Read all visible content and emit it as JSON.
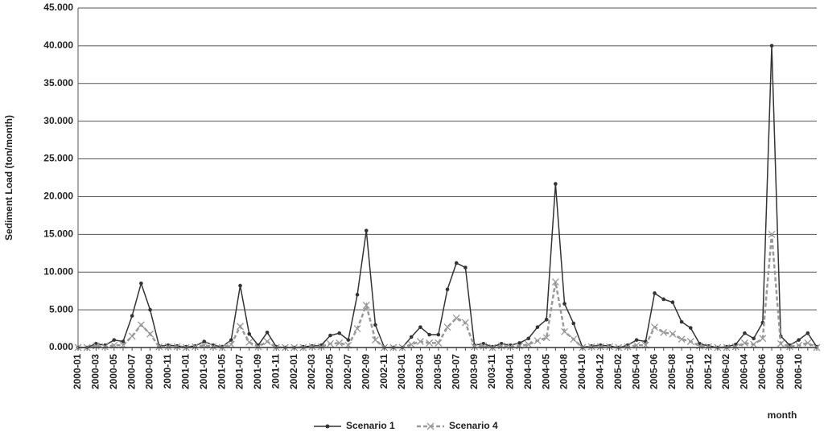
{
  "chart_data": {
    "type": "line",
    "y_label": "Sediment Load (ton/month)",
    "x_label": "month",
    "categories": [
      "2000-01",
      null,
      "2000-03",
      null,
      "2000-05",
      null,
      "2000-07",
      null,
      "2000-09",
      null,
      "2000-11",
      null,
      "2001-01",
      null,
      "2001-03",
      null,
      "2001-05",
      null,
      "2001-07",
      null,
      "2001-09",
      null,
      "2001-11",
      null,
      "2002-01",
      null,
      "2002-03",
      null,
      "2002-05",
      null,
      "2002-07",
      null,
      "2002-09",
      null,
      "2002-11",
      null,
      "2003-01",
      null,
      "2003-03",
      null,
      "2003-05",
      null,
      "2003-07",
      null,
      "2003-09",
      null,
      "2003-11",
      null,
      "2004-01",
      null,
      "2004-03",
      null,
      "2004-05",
      null,
      "2004-08",
      null,
      "2004-10",
      null,
      "2004-12",
      null,
      "2005-02",
      null,
      "2005-04",
      null,
      "2005-06",
      null,
      "2005-08",
      null,
      "2005-10",
      null,
      "2005-12",
      null,
      "2006-02",
      null,
      "2006-04",
      null,
      "2006-06",
      null,
      "2006-08",
      null,
      "2006-10",
      null,
      null
    ],
    "series": [
      {
        "name": "Scenario 1",
        "color": "#333333",
        "marker": "dot",
        "dash": false,
        "values": [
          0,
          0,
          500,
          300,
          1000,
          800,
          4200,
          8500,
          5000,
          200,
          300,
          200,
          100,
          200,
          800,
          300,
          100,
          1000,
          8200,
          1800,
          300,
          2000,
          100,
          0,
          0,
          100,
          200,
          300,
          1600,
          1900,
          1000,
          7000,
          15500,
          3000,
          0,
          0,
          0,
          1400,
          2700,
          1700,
          1700,
          7700,
          11200,
          10600,
          300,
          500,
          100,
          500,
          300,
          600,
          1200,
          2700,
          3700,
          21700,
          5800,
          3200,
          0,
          200,
          300,
          200,
          0,
          300,
          1000,
          800,
          7200,
          6400,
          6000,
          3400,
          2600,
          500,
          200,
          0,
          100,
          400,
          1900,
          1200,
          3300,
          40000,
          1500,
          300,
          1000,
          1900,
          100
        ]
      },
      {
        "name": "Scenario 4",
        "color": "#999999",
        "marker": "x",
        "dash": true,
        "values": [
          0,
          0,
          200,
          100,
          300,
          300,
          1500,
          3000,
          1800,
          100,
          100,
          100,
          0,
          100,
          300,
          100,
          0,
          400,
          2800,
          700,
          100,
          800,
          0,
          0,
          0,
          0,
          100,
          100,
          500,
          600,
          300,
          2500,
          5600,
          1000,
          0,
          0,
          0,
          400,
          800,
          600,
          600,
          2700,
          3900,
          3300,
          100,
          200,
          0,
          200,
          100,
          200,
          400,
          900,
          1300,
          8700,
          2100,
          1100,
          0,
          100,
          100,
          100,
          0,
          100,
          300,
          300,
          2700,
          2000,
          1800,
          1100,
          800,
          200,
          100,
          0,
          0,
          100,
          600,
          400,
          1200,
          15000,
          500,
          100,
          300,
          600,
          0
        ]
      }
    ],
    "ylim": [
      0,
      45000
    ],
    "yticks": [
      {
        "value": 0,
        "label": "0.000"
      },
      {
        "value": 5000,
        "label": "5.000"
      },
      {
        "value": 10000,
        "label": "10.000"
      },
      {
        "value": 15000,
        "label": "15.000"
      },
      {
        "value": 20000,
        "label": "20.000"
      },
      {
        "value": 25000,
        "label": "25.000"
      },
      {
        "value": 30000,
        "label": "30.000"
      },
      {
        "value": 35000,
        "label": "35.000"
      },
      {
        "value": 40000,
        "label": "40.000"
      },
      {
        "value": 45000,
        "label": "45.000"
      }
    ],
    "grid": true,
    "legend": "bottom"
  }
}
